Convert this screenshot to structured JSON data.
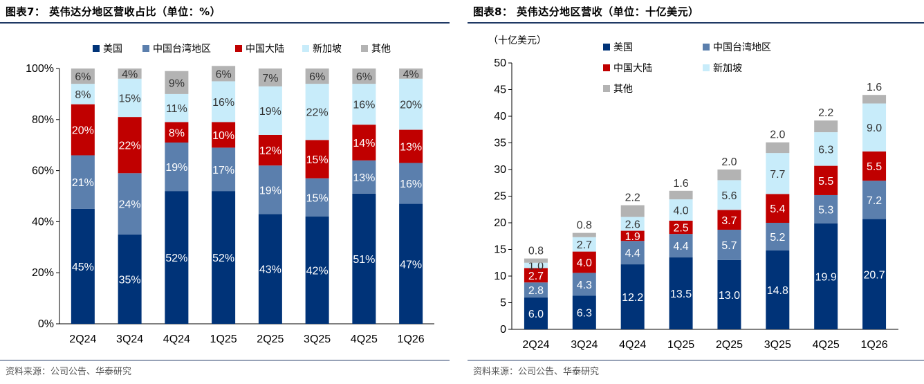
{
  "left": {
    "title": "图表7： 英伟达分地区营收占比（单位：%）",
    "source": "资料来源：公司公告、华泰研究"
  },
  "right": {
    "title": "图表8： 英伟达分地区营收（单位：十亿美元）",
    "source": "资料来源：公司公告、华泰研究",
    "unit_label": "（十亿美元）"
  },
  "colors": {
    "美国": "#003378",
    "中国台湾地区": "#5b7fad",
    "中国大陆": "#c00000",
    "新加坡": "#c8ecfa",
    "其他": "#b3b3b3",
    "title_rule": "#1f3864"
  },
  "chart_data": [
    {
      "type": "bar",
      "stacked": true,
      "title": "图表7： 英伟达分地区营收占比（单位：%）",
      "categories": [
        "2Q24",
        "3Q24",
        "4Q24",
        "1Q25",
        "2Q25",
        "3Q25",
        "4Q25",
        "1Q26"
      ],
      "ylim": [
        0,
        100
      ],
      "yticks": [
        "0%",
        "20%",
        "40%",
        "60%",
        "80%",
        "100%"
      ],
      "grid": false,
      "legend_position": "top",
      "series": [
        {
          "name": "美国",
          "values": [
            45,
            35,
            52,
            52,
            43,
            42,
            51,
            47
          ],
          "labels": [
            "45%",
            "35%",
            "52%",
            "52%",
            "43%",
            "42%",
            "51%",
            "47%"
          ]
        },
        {
          "name": "中国台湾地区",
          "values": [
            21,
            24,
            19,
            17,
            19,
            15,
            13,
            16
          ],
          "labels": [
            "21%",
            "24%",
            "19%",
            "17%",
            "19%",
            "15%",
            "13%",
            "16%"
          ]
        },
        {
          "name": "中国大陆",
          "values": [
            20,
            22,
            8,
            10,
            12,
            15,
            14,
            13
          ],
          "labels": [
            "20%",
            "22%",
            "8%",
            "10%",
            "12%",
            "15%",
            "14%",
            "13%"
          ]
        },
        {
          "name": "新加坡",
          "values": [
            8,
            15,
            11,
            16,
            19,
            22,
            16,
            20
          ],
          "labels": [
            "8%",
            "15%",
            "11%",
            "16%",
            "19%",
            "22%",
            "16%",
            "20%"
          ]
        },
        {
          "name": "其他",
          "values": [
            6,
            4,
            9,
            6,
            7,
            6,
            6,
            4
          ],
          "labels": [
            "6%",
            "4%",
            "9%",
            "6%",
            "7%",
            "6%",
            "6%",
            "4%"
          ]
        }
      ]
    },
    {
      "type": "bar",
      "stacked": true,
      "title": "图表8： 英伟达分地区营收（单位：十亿美元）",
      "ylabel": "（十亿美元）",
      "categories": [
        "2Q24",
        "3Q24",
        "4Q24",
        "1Q25",
        "2Q25",
        "3Q25",
        "4Q25",
        "1Q26"
      ],
      "ylim": [
        0,
        50
      ],
      "yticks": [
        "0",
        "5",
        "10",
        "15",
        "20",
        "25",
        "30",
        "35",
        "40",
        "45",
        "50"
      ],
      "grid": false,
      "legend_position": "top",
      "series": [
        {
          "name": "美国",
          "values": [
            6.0,
            6.3,
            12.2,
            13.5,
            13.0,
            14.8,
            19.9,
            20.7
          ],
          "labels": [
            "6.0",
            "6.3",
            "12.2",
            "13.5",
            "13.0",
            "14.8",
            "19.9",
            "20.7"
          ]
        },
        {
          "name": "中国台湾地区",
          "values": [
            2.8,
            4.3,
            4.4,
            4.4,
            5.7,
            5.2,
            5.3,
            7.2
          ],
          "labels": [
            "2.8",
            "4.3",
            "4.4",
            "4.4",
            "5.7",
            "5.2",
            "5.3",
            "7.2"
          ]
        },
        {
          "name": "中国大陆",
          "values": [
            2.7,
            4.0,
            1.9,
            2.5,
            3.7,
            5.4,
            5.5,
            5.5
          ],
          "labels": [
            "2.7",
            "4.0",
            "1.9",
            "2.5",
            "3.7",
            "5.4",
            "5.5",
            "5.5"
          ]
        },
        {
          "name": "新加坡",
          "values": [
            1.0,
            2.7,
            2.6,
            4.0,
            5.6,
            7.7,
            6.3,
            9.0
          ],
          "labels": [
            "1.0",
            "2.7",
            "2.6",
            "4.0",
            "5.6",
            "7.7",
            "6.3",
            "9.0"
          ]
        },
        {
          "name": "其他",
          "values": [
            0.8,
            0.8,
            2.2,
            1.6,
            2.0,
            2.0,
            2.2,
            1.6
          ],
          "labels": [
            "0.8",
            "0.8",
            "2.2",
            "1.6",
            "2.0",
            "2.0",
            "2.2",
            "1.6"
          ]
        }
      ]
    }
  ]
}
